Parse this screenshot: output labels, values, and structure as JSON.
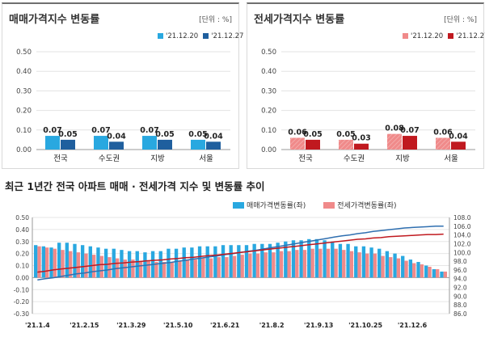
{
  "panel_left": {
    "title": "매매가격지수 변동률",
    "unit": "[단위 : %]",
    "colors": {
      "s1": "#29a8e0",
      "s2": "#1f5f9e"
    }
  },
  "panel_right": {
    "title": "전세가격지수 변동률",
    "unit": "[단위 : %]",
    "colors": {
      "s1": "#f08a8a",
      "s2": "#c0191f"
    }
  },
  "bottom": {
    "title": "최근 1년간 전국 아파트 매매 · 전세가격 지수 및 변동률 추이",
    "legend": [
      "매매가격변동률(좌)",
      "전세가격변동률(좌)"
    ],
    "colors": {
      "sale_bar": "#29a8e0",
      "jeonse_bar": "#f08a8a",
      "sale_line": "#2f6fb0",
      "jeonse_line": "#c0191f"
    }
  },
  "chart_data": [
    {
      "type": "bar",
      "title": "매매가격지수 변동률",
      "categories": [
        "전국",
        "수도권",
        "지방",
        "서울"
      ],
      "series": [
        {
          "name": "'21.12.20",
          "values": [
            0.07,
            0.07,
            0.07,
            0.05
          ]
        },
        {
          "name": "'21.12.27",
          "values": [
            0.05,
            0.04,
            0.05,
            0.04
          ]
        }
      ],
      "ylim": [
        0,
        0.5
      ],
      "yticks": [
        "0.00",
        "0.10",
        "0.20",
        "0.30",
        "0.40",
        "0.50"
      ]
    },
    {
      "type": "bar",
      "title": "전세가격지수 변동률",
      "categories": [
        "전국",
        "수도권",
        "지방",
        "서울"
      ],
      "series": [
        {
          "name": "'21.12.20",
          "values": [
            0.06,
            0.05,
            0.08,
            0.06
          ]
        },
        {
          "name": "'21.12.27",
          "values": [
            0.05,
            0.03,
            0.07,
            0.04
          ]
        }
      ],
      "ylim": [
        0,
        0.5
      ],
      "yticks": [
        "0.00",
        "0.10",
        "0.20",
        "0.30",
        "0.40",
        "0.50"
      ]
    },
    {
      "type": "bar",
      "title": "최근 1년간 전국 아파트 매매 · 전세가격 지수 및 변동률 추이",
      "x_ticks": [
        "'21.1.4",
        "'21.2.15",
        "'21.3.29",
        "'21.5.10",
        "'21.6.21",
        "'21.8.2",
        "'21.9.13",
        "'21.10.25",
        "'21.12.6"
      ],
      "x_tick_week_index": [
        0,
        6,
        12,
        18,
        24,
        30,
        36,
        42,
        48
      ],
      "y_left_lim": [
        -0.3,
        0.5
      ],
      "y_left_ticks": [
        "0.50",
        "0.40",
        "0.30",
        "0.20",
        "0.10",
        "0.00",
        "-0.10",
        "-0.20",
        "-0.30"
      ],
      "y_right_lim": [
        86,
        108
      ],
      "y_right_ticks": [
        "108.0",
        "106.0",
        "104.0",
        "102.0",
        "100.0",
        "98.0",
        "96.0",
        "94.0",
        "92.0",
        "90.0",
        "88.0",
        "86.0"
      ],
      "series": [
        {
          "name": "매매가격변동률(좌)",
          "axis": "left",
          "kind": "bar",
          "values": [
            0.27,
            0.26,
            0.25,
            0.29,
            0.29,
            0.28,
            0.27,
            0.26,
            0.25,
            0.24,
            0.24,
            0.23,
            0.22,
            0.22,
            0.21,
            0.22,
            0.22,
            0.24,
            0.24,
            0.25,
            0.25,
            0.26,
            0.26,
            0.26,
            0.27,
            0.27,
            0.27,
            0.27,
            0.28,
            0.28,
            0.28,
            0.29,
            0.3,
            0.31,
            0.31,
            0.32,
            0.32,
            0.31,
            0.3,
            0.28,
            0.28,
            0.26,
            0.26,
            0.25,
            0.24,
            0.22,
            0.2,
            0.18,
            0.15,
            0.13,
            0.1,
            0.07,
            0.05
          ]
        },
        {
          "name": "전세가격변동률(좌)",
          "axis": "left",
          "kind": "bar",
          "values": [
            0.26,
            0.25,
            0.24,
            0.23,
            0.22,
            0.21,
            0.2,
            0.19,
            0.18,
            0.17,
            0.16,
            0.15,
            0.15,
            0.14,
            0.14,
            0.13,
            0.13,
            0.13,
            0.14,
            0.15,
            0.15,
            0.16,
            0.16,
            0.17,
            0.17,
            0.18,
            0.19,
            0.2,
            0.2,
            0.21,
            0.21,
            0.22,
            0.22,
            0.23,
            0.23,
            0.24,
            0.24,
            0.24,
            0.24,
            0.23,
            0.22,
            0.21,
            0.2,
            0.2,
            0.18,
            0.17,
            0.16,
            0.14,
            0.12,
            0.11,
            0.09,
            0.07,
            0.05
          ]
        },
        {
          "name": "매매가격지수",
          "axis": "right",
          "kind": "line",
          "values": [
            93.7,
            94.0,
            94.2,
            94.5,
            94.8,
            95.1,
            95.3,
            95.6,
            95.8,
            96.0,
            96.3,
            96.5,
            96.7,
            96.9,
            97.1,
            97.3,
            97.5,
            97.7,
            98.0,
            98.2,
            98.5,
            98.7,
            99.0,
            99.2,
            99.5,
            99.7,
            100.0,
            100.3,
            100.5,
            100.8,
            101.1,
            101.4,
            101.7,
            102.0,
            102.3,
            102.6,
            102.9,
            103.2,
            103.5,
            103.8,
            104.0,
            104.3,
            104.5,
            104.8,
            105.0,
            105.2,
            105.4,
            105.6,
            105.7,
            105.8,
            105.9,
            106.0,
            106.0
          ]
        },
        {
          "name": "전세가격지수",
          "axis": "right",
          "kind": "line",
          "values": [
            95.5,
            95.7,
            96.0,
            96.2,
            96.4,
            96.6,
            96.8,
            97.0,
            97.2,
            97.3,
            97.5,
            97.6,
            97.8,
            97.9,
            98.1,
            98.2,
            98.3,
            98.5,
            98.6,
            98.8,
            98.9,
            99.1,
            99.3,
            99.4,
            99.6,
            99.8,
            100.0,
            100.2,
            100.4,
            100.6,
            100.8,
            101.0,
            101.2,
            101.4,
            101.6,
            101.8,
            102.0,
            102.2,
            102.4,
            102.6,
            102.8,
            103.0,
            103.1,
            103.3,
            103.4,
            103.6,
            103.7,
            103.8,
            103.9,
            104.0,
            104.1,
            104.1,
            104.2
          ]
        }
      ]
    }
  ]
}
